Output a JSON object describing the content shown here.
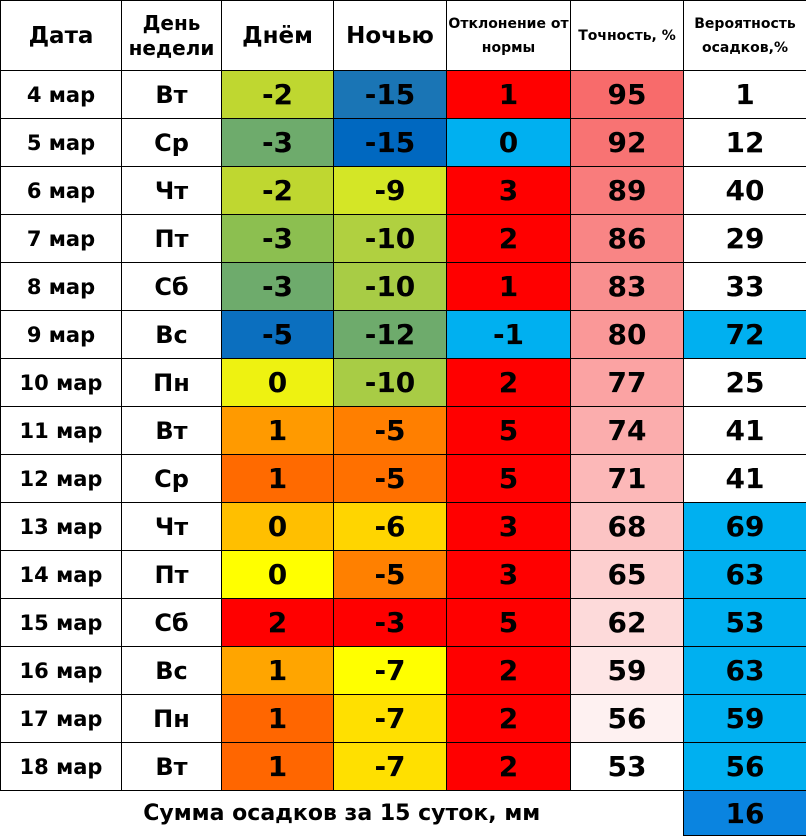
{
  "headers": {
    "date": "Дата",
    "weekday": "День недели",
    "day": "Днём",
    "night": "Ночью",
    "deviation": "Отклонение от нормы",
    "accuracy": "Точность, %",
    "precip_prob": "Вероятность осадков,%"
  },
  "chart_data": {
    "type": "table",
    "columns": [
      "Дата",
      "День недели",
      "Днём",
      "Ночью",
      "Отклонение от нормы",
      "Точность, %",
      "Вероятность осадков,%"
    ],
    "rows": [
      {
        "date": "4 мар",
        "weekday": "Вт",
        "day": "-2",
        "night": "-15",
        "deviation": "1",
        "accuracy": "95",
        "precip": "1",
        "colors": {
          "day": "#bfd730",
          "night": "#1a75b5",
          "deviation": "#ff0000",
          "accuracy": "#f86b6b",
          "precip": "#ffffff"
        }
      },
      {
        "date": "5 мар",
        "weekday": "Ср",
        "day": "-3",
        "night": "-15",
        "deviation": "0",
        "accuracy": "92",
        "precip": "12",
        "colors": {
          "day": "#6eab6c",
          "night": "#0068c0",
          "deviation": "#00b0f0",
          "accuracy": "#f87373",
          "precip": "#ffffff"
        }
      },
      {
        "date": "6 мар",
        "weekday": "Чт",
        "day": "-2",
        "night": "-9",
        "deviation": "3",
        "accuracy": "89",
        "precip": "40",
        "colors": {
          "day": "#bfd730",
          "night": "#d4e626",
          "deviation": "#ff0000",
          "accuracy": "#f97c7c",
          "precip": "#ffffff"
        }
      },
      {
        "date": "7 мар",
        "weekday": "Пт",
        "day": "-3",
        "night": "-10",
        "deviation": "2",
        "accuracy": "86",
        "precip": "29",
        "colors": {
          "day": "#8cbf50",
          "night": "#b0d040",
          "deviation": "#ff0000",
          "accuracy": "#f98585",
          "precip": "#ffffff"
        }
      },
      {
        "date": "8 мар",
        "weekday": "Сб",
        "day": "-3",
        "night": "-10",
        "deviation": "1",
        "accuracy": "83",
        "precip": "33",
        "colors": {
          "day": "#6eab6c",
          "night": "#a8cc45",
          "deviation": "#ff0000",
          "accuracy": "#f98f8f",
          "precip": "#ffffff"
        }
      },
      {
        "date": "9 мар",
        "weekday": "Вс",
        "day": "-5",
        "night": "-12",
        "deviation": "-1",
        "accuracy": "80",
        "precip": "72",
        "colors": {
          "day": "#0b6fbf",
          "night": "#6eab6c",
          "deviation": "#00b0f0",
          "accuracy": "#fa9898",
          "precip": "#00b0f0"
        }
      },
      {
        "date": "10 мар",
        "weekday": "Пн",
        "day": "0",
        "night": "-10",
        "deviation": "2",
        "accuracy": "77",
        "precip": "25",
        "colors": {
          "day": "#eef211",
          "night": "#a8cc45",
          "deviation": "#ff0000",
          "accuracy": "#fba3a3",
          "precip": "#ffffff"
        }
      },
      {
        "date": "11 мар",
        "weekday": "Вт",
        "day": "1",
        "night": "-5",
        "deviation": "5",
        "accuracy": "74",
        "precip": "41",
        "colors": {
          "day": "#ff9a00",
          "night": "#ff7f00",
          "deviation": "#ff0000",
          "accuracy": "#fbadad",
          "precip": "#ffffff"
        }
      },
      {
        "date": "12 мар",
        "weekday": "Ср",
        "day": "1",
        "night": "-5",
        "deviation": "5",
        "accuracy": "71",
        "precip": "41",
        "colors": {
          "day": "#ff6a00",
          "night": "#ff7000",
          "deviation": "#ff0000",
          "accuracy": "#fcb8b8",
          "precip": "#ffffff"
        }
      },
      {
        "date": "13 мар",
        "weekday": "Чт",
        "day": "0",
        "night": "-6",
        "deviation": "3",
        "accuracy": "68",
        "precip": "69",
        "colors": {
          "day": "#ffbf00",
          "night": "#ffd500",
          "deviation": "#ff0000",
          "accuracy": "#fcc4c4",
          "precip": "#00b0f0"
        }
      },
      {
        "date": "14 мар",
        "weekday": "Пт",
        "day": "0",
        "night": "-5",
        "deviation": "3",
        "accuracy": "65",
        "precip": "63",
        "colors": {
          "day": "#ffff00",
          "night": "#ff8000",
          "deviation": "#ff0000",
          "accuracy": "#fdcfcf",
          "precip": "#00b0f0"
        }
      },
      {
        "date": "15 мар",
        "weekday": "Сб",
        "day": "2",
        "night": "-3",
        "deviation": "5",
        "accuracy": "62",
        "precip": "53",
        "colors": {
          "day": "#ff0000",
          "night": "#ff0000",
          "deviation": "#ff0000",
          "accuracy": "#fddada",
          "precip": "#00b0f0"
        }
      },
      {
        "date": "16 мар",
        "weekday": "Вс",
        "day": "1",
        "night": "-7",
        "deviation": "2",
        "accuracy": "59",
        "precip": "63",
        "colors": {
          "day": "#ffa500",
          "night": "#ffff00",
          "deviation": "#ff0000",
          "accuracy": "#fee6e6",
          "precip": "#00b0f0"
        }
      },
      {
        "date": "17 мар",
        "weekday": "Пн",
        "day": "1",
        "night": "-7",
        "deviation": "2",
        "accuracy": "56",
        "precip": "59",
        "colors": {
          "day": "#ff6600",
          "night": "#ffe000",
          "deviation": "#ff0000",
          "accuracy": "#fef1f1",
          "precip": "#00b0f0"
        }
      },
      {
        "date": "18 мар",
        "weekday": "Вт",
        "day": "1",
        "night": "-7",
        "deviation": "2",
        "accuracy": "53",
        "precip": "56",
        "colors": {
          "day": "#ff6600",
          "night": "#ffe000",
          "deviation": "#ff0000",
          "accuracy": "#ffffff",
          "precip": "#00b0f0"
        }
      }
    ]
  },
  "footer": {
    "label": "Сумма осадков за 15 суток, мм",
    "value": "16",
    "color": "#0a84e0"
  }
}
